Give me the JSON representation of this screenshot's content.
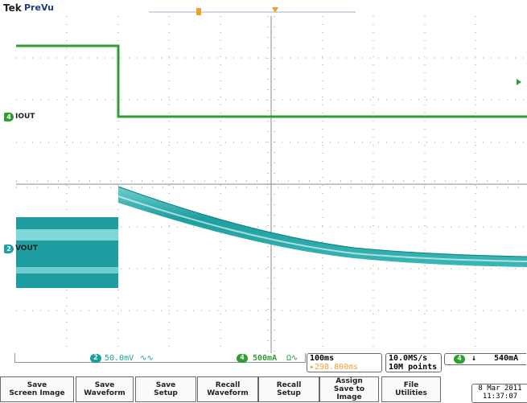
{
  "header": {
    "brand": "Tek",
    "state": "PreVu"
  },
  "channels": {
    "iout": {
      "label": "IOUT",
      "number": "4",
      "color": "#2e9e2e"
    },
    "vout": {
      "label": "VOUT",
      "number": "2",
      "color": "#1aa0a0"
    }
  },
  "readout": {
    "ch2": {
      "number": "2",
      "scale": "50.0mV",
      "coupling": "∿∿"
    },
    "ch4": {
      "number": "4",
      "scale": "500mA",
      "coupling": "Ω∿"
    },
    "timebase": "100ms",
    "trigger_pos": "▸298.800ms",
    "sample_rate": "10.0MS/s",
    "record_length": "10M points",
    "trigger": {
      "source": "4",
      "slope": "↓",
      "level": "540mA"
    }
  },
  "menu": [
    {
      "line1": "Save",
      "line2": "Screen Image"
    },
    {
      "line1": "Save",
      "line2": "Waveform"
    },
    {
      "line1": "Save",
      "line2": "Setup"
    },
    {
      "line1": "Recall",
      "line2": "Waveform"
    },
    {
      "line1": "Recall",
      "line2": "Setup"
    },
    {
      "line1": "Assign",
      "line2": "Save to",
      "line3": "Image"
    },
    {
      "line1": "File",
      "line2": "Utilities"
    }
  ],
  "datetime": {
    "date": "8 Mar 2011",
    "time": "11:37:07"
  },
  "colors": {
    "ch4": "#2e9e2e",
    "ch2": "#1aa0a0",
    "trigger": "#f0a030",
    "accent_text": "#f0a030"
  }
}
